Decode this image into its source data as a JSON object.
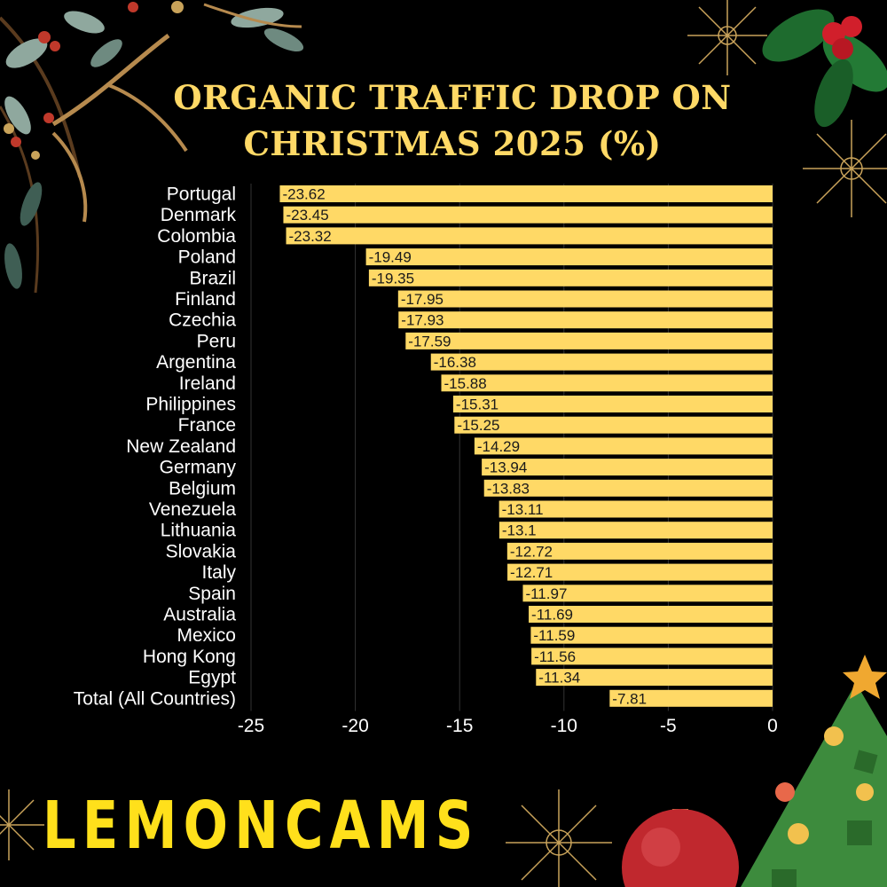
{
  "title_lines": [
    "ORGANIC TRAFFIC DROP ON",
    "CHRISTMAS 2025 (%)"
  ],
  "brand": "LEMONCAMS",
  "colors": {
    "background": "#000000",
    "bar": "#FFD966",
    "title": "#FFD966",
    "brand": "#FFE01B",
    "axis_text": "#FFFFFF",
    "value_text": "#1A1A1A",
    "grid": "#333333"
  },
  "chart_data": {
    "type": "bar",
    "orientation": "horizontal",
    "title": "ORGANIC TRAFFIC DROP ON CHRISTMAS 2025 (%)",
    "categories": [
      "Portugal",
      "Denmark",
      "Colombia",
      "Poland",
      "Brazil",
      "Finland",
      "Czechia",
      "Peru",
      "Argentina",
      "Ireland",
      "Philippines",
      "France",
      "New Zealand",
      "Germany",
      "Belgium",
      "Venezuela",
      "Lithuania",
      "Slovakia",
      "Italy",
      "Spain",
      "Australia",
      "Mexico",
      "Hong Kong",
      "Egypt",
      "Total (All Countries)"
    ],
    "values": [
      -23.62,
      -23.45,
      -23.32,
      -19.49,
      -19.35,
      -17.95,
      -17.93,
      -17.59,
      -16.38,
      -15.88,
      -15.31,
      -15.25,
      -14.29,
      -13.94,
      -13.83,
      -13.11,
      -13.1,
      -12.72,
      -12.71,
      -11.97,
      -11.69,
      -11.59,
      -11.56,
      -11.34,
      -7.81
    ],
    "value_labels": [
      "-23.62",
      "-23.45",
      "-23.32",
      "-19.49",
      "-19.35",
      "-17.95",
      "-17.93",
      "-17.59",
      "-16.38",
      "-15.88",
      "-15.31",
      "-15.25",
      "-14.29",
      "-13.94",
      "-13.83",
      "-13.11",
      "-13.1",
      "-12.72",
      "-12.71",
      "-11.97",
      "-11.69",
      "-11.59",
      "-11.56",
      "-11.34",
      "-7.81"
    ],
    "xlim": [
      -25,
      0
    ],
    "xticks": [
      -25,
      -20,
      -15,
      -10,
      -5,
      0
    ],
    "xtick_labels": [
      "-25",
      "-20",
      "-15",
      "-10",
      "-5",
      "0"
    ],
    "grid": true,
    "legend": "none"
  }
}
